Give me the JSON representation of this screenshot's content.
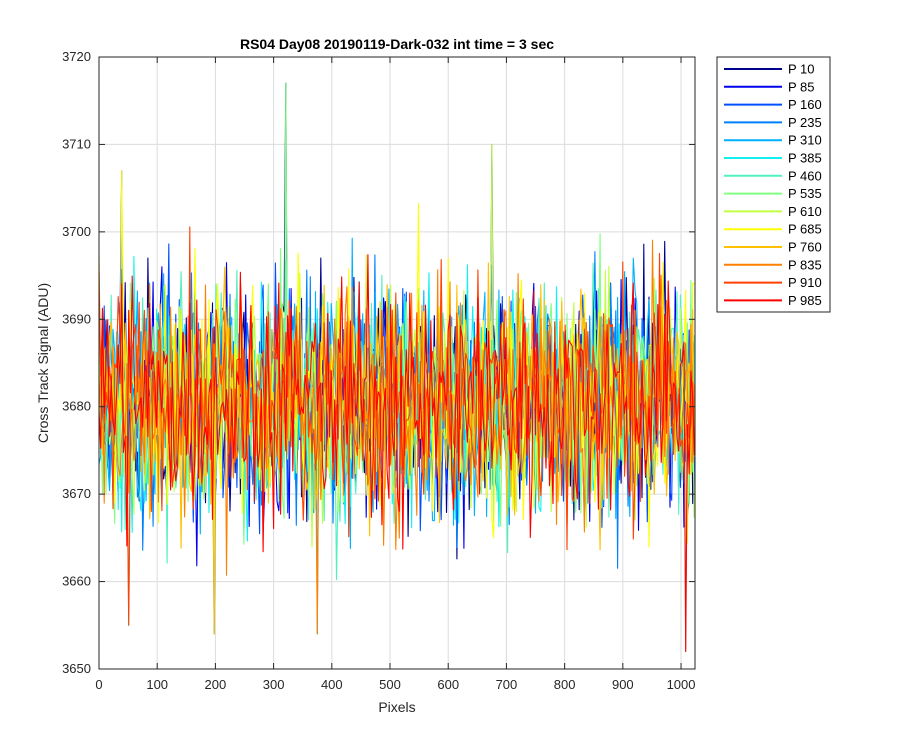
{
  "chart_data": {
    "type": "line",
    "title": "RS04 Day08 20190119-Dark-032 int time = 3 sec",
    "xlabel": "Pixels",
    "ylabel": "Cross Track Signal (ADU)",
    "xlim": [
      0,
      1024
    ],
    "ylim": [
      3650,
      3720
    ],
    "xticks": [
      0,
      100,
      200,
      300,
      400,
      500,
      600,
      700,
      800,
      900,
      1000
    ],
    "yticks": [
      3650,
      3660,
      3670,
      3680,
      3690,
      3700,
      3710,
      3720
    ],
    "grid": true,
    "legend_position": "outside-top-right",
    "noise_summary": {
      "mean": 3681,
      "typical_band": [
        3664,
        3700
      ],
      "observed_extremes": [
        {
          "x": 320,
          "y": 3717
        },
        {
          "x": 675,
          "y": 3710
        },
        {
          "x": 40,
          "y": 3707
        },
        {
          "x": 197,
          "y": 3654
        },
        {
          "x": 375,
          "y": 3654
        },
        {
          "x": 52,
          "y": 3655
        },
        {
          "x": 1008,
          "y": 3652
        }
      ]
    },
    "series": [
      {
        "name": "P 10",
        "color": "#00008f"
      },
      {
        "name": "P 85",
        "color": "#0000ee"
      },
      {
        "name": "P 160",
        "color": "#0050ff"
      },
      {
        "name": "P 235",
        "color": "#0080ff"
      },
      {
        "name": "P 310",
        "color": "#00b0ff"
      },
      {
        "name": "P 385",
        "color": "#10f0f0"
      },
      {
        "name": "P 460",
        "color": "#50f0c0"
      },
      {
        "name": "P 535",
        "color": "#80ff80"
      },
      {
        "name": "P 610",
        "color": "#c0ff40"
      },
      {
        "name": "P 685",
        "color": "#ffff00"
      },
      {
        "name": "P 760",
        "color": "#ffc000"
      },
      {
        "name": "P 835",
        "color": "#ff8000"
      },
      {
        "name": "P 910",
        "color": "#ff4000"
      },
      {
        "name": "P 985",
        "color": "#ff0000"
      }
    ]
  }
}
